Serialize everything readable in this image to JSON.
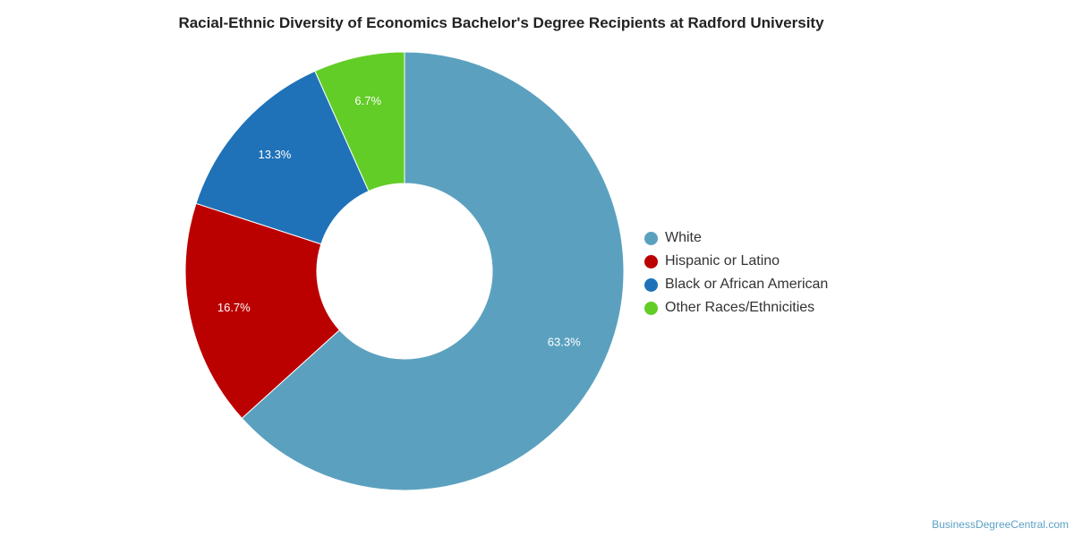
{
  "chart_data": {
    "type": "pie",
    "title": "Racial-Ethnic Diversity of Economics Bachelor's Degree Recipients at Radford University",
    "donut": true,
    "legend_position": "right",
    "slices": [
      {
        "label": "White",
        "value": 63.3,
        "display": "63.3%",
        "color": "#5ba1bf"
      },
      {
        "label": "Hispanic or Latino",
        "value": 16.7,
        "display": "16.7%",
        "color": "#bb0000"
      },
      {
        "label": "Black or African American",
        "value": 13.3,
        "display": "13.3%",
        "color": "#1f72b8"
      },
      {
        "label": "Other Races/Ethnicities",
        "value": 6.7,
        "display": "6.7%",
        "color": "#62cd27"
      }
    ]
  },
  "watermark": "BusinessDegreeCentral.com"
}
